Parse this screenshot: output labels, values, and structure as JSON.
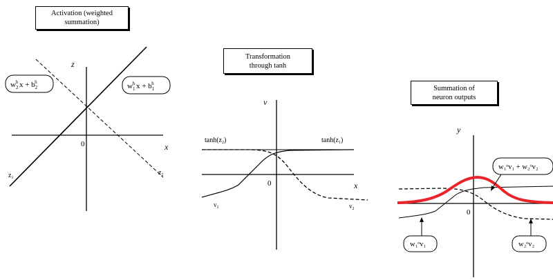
{
  "panels": {
    "activation": {
      "title": "Activation (weighted\nsummation)",
      "axis_z": "z",
      "axis_x": "x",
      "origin": "0",
      "label_z1": "z",
      "label_z1_sub": "1",
      "label_z2": "z",
      "label_z2_sub": "2",
      "eq_left": {
        "w": "w",
        "w_sup": "h",
        "w_sub": "2",
        "x": "x + b",
        "b_sup": "h",
        "b_sub": "2"
      },
      "eq_right": {
        "w": "w",
        "w_sup": "h",
        "w_sub": "1",
        "x": "x + b",
        "b_sup": "h",
        "b_sub": "1"
      }
    },
    "transformation": {
      "title": "Transformation\nthrough tanh",
      "axis_v": "v",
      "axis_x": "x",
      "origin": "0",
      "tanh_z2": "tanh(z",
      "tanh_z2_sub": "2",
      "tanh_z1": "tanh(z",
      "tanh_z1_sub": "1",
      "close_paren": ")",
      "v1": "v",
      "v1_sub": "1",
      "v2": "v",
      "v2_sub": "2"
    },
    "summation": {
      "title": "Summation of\nneuron outputs",
      "axis_y": "y",
      "origin": "0",
      "eq_sum": "w₁ᵒv₁ + w₂ᵒv₂",
      "eq_w1v1": "w₁ᵒv₁",
      "eq_w2v2": "w₂ᵒv₂"
    }
  },
  "colors": {
    "lines": "#000000",
    "sum_curve": "#e8242a"
  }
}
